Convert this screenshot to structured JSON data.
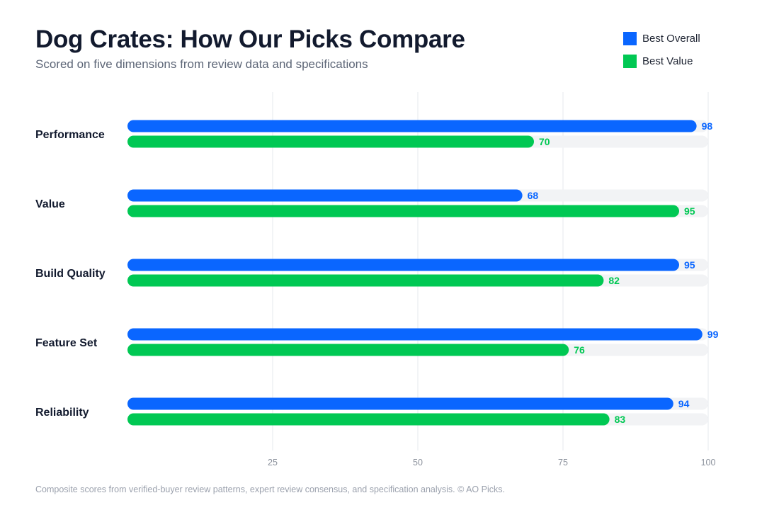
{
  "header": {
    "title": "Dog Crates: How Our Picks Compare",
    "subtitle": "Scored on five dimensions from review data and specifications"
  },
  "footer": {
    "note": "Composite scores from verified-buyer review patterns, expert review consensus, and specification analysis. © AO Picks."
  },
  "colors": {
    "best_overall": "#0a66ff",
    "best_value": "#00c853",
    "track": "#f2f3f5",
    "grid": "#e6e8ec"
  },
  "chart_data": {
    "type": "bar",
    "orientation": "horizontal",
    "categories": [
      "Performance",
      "Value",
      "Build Quality",
      "Feature Set",
      "Reliability"
    ],
    "series": [
      {
        "name": "Best Overall",
        "values": [
          98,
          68,
          95,
          99,
          94
        ]
      },
      {
        "name": "Best Value",
        "values": [
          70,
          95,
          82,
          76,
          83
        ]
      }
    ],
    "xlim": [
      0,
      100
    ],
    "xticks": [
      25,
      50,
      75,
      100
    ],
    "grid": true,
    "legend": "top-right",
    "data_labels": true
  }
}
